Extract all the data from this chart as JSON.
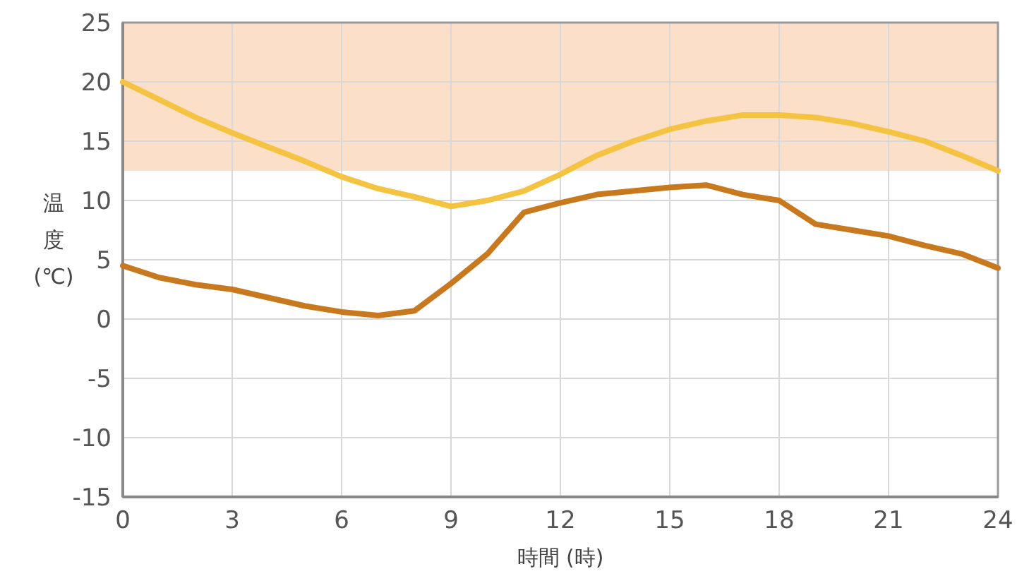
{
  "chart_data": {
    "type": "line",
    "xlabel": "時間 (時)",
    "ylabel": "温度 (℃)",
    "xlim": [
      0,
      24
    ],
    "xticks": [
      0,
      3,
      6,
      9,
      12,
      15,
      18,
      21,
      24
    ],
    "ylim": [
      -15,
      25
    ],
    "yticks": [
      -15,
      -10,
      -5,
      0,
      5,
      10,
      15,
      20,
      25
    ],
    "grid": true,
    "marker": "none",
    "line_style": "solid",
    "bands": [
      {
        "axis": "y",
        "from": 12.5,
        "to": 25,
        "color": "#fbdfc8"
      }
    ],
    "x": [
      0,
      1,
      2,
      3,
      4,
      5,
      6,
      7,
      8,
      9,
      10,
      11,
      12,
      13,
      14,
      15,
      16,
      17,
      18,
      19,
      20,
      21,
      22,
      23,
      24
    ],
    "series": [
      {
        "color": "#f5c342",
        "values": [
          20,
          18.5,
          17,
          15.7,
          14.5,
          13.3,
          12,
          11,
          10.3,
          9.5,
          10,
          10.8,
          12.2,
          13.8,
          15,
          16,
          16.7,
          17.2,
          17.2,
          17,
          16.5,
          15.8,
          15,
          13.8,
          12.5
        ]
      },
      {
        "color": "#c8791e",
        "values": [
          4.5,
          3.5,
          2.9,
          2.5,
          1.8,
          1.1,
          0.6,
          0.3,
          0.7,
          3,
          5.5,
          9,
          9.8,
          10.5,
          10.8,
          11.1,
          11.3,
          10.5,
          10,
          8,
          7.5,
          7,
          6.2,
          5.5,
          4.3
        ]
      }
    ]
  }
}
